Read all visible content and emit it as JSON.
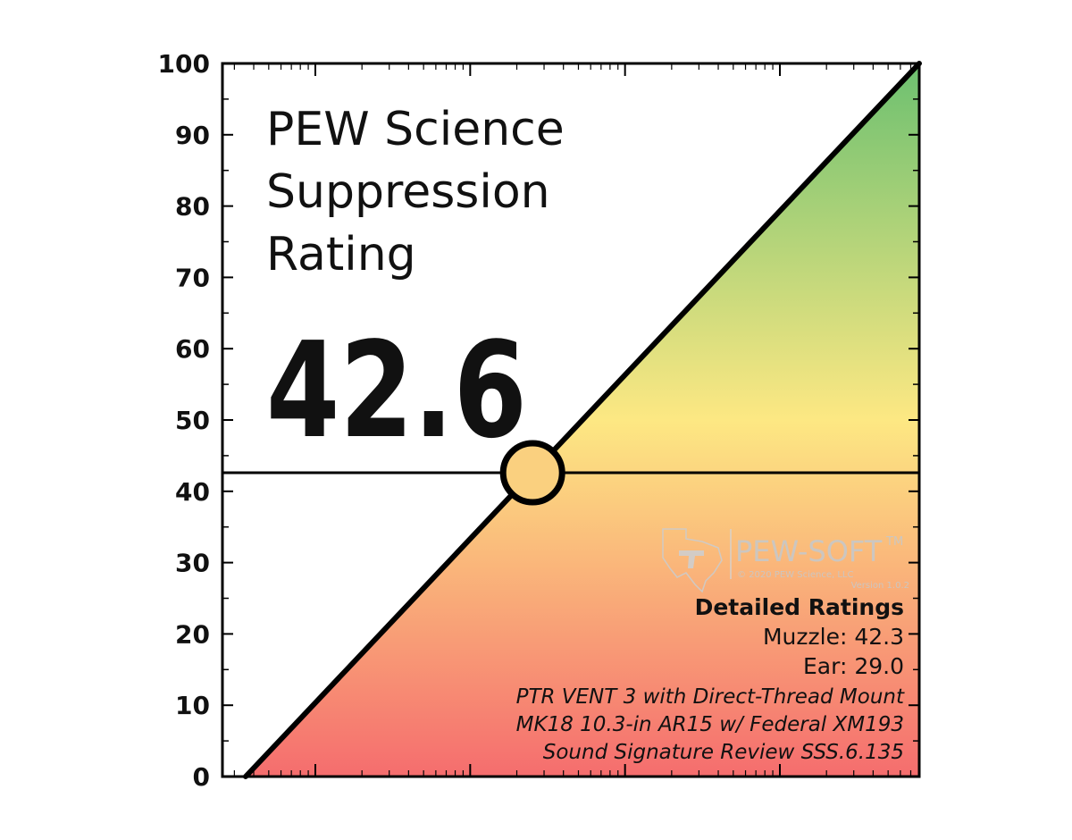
{
  "chart_data": {
    "type": "line",
    "title_lines": [
      "PEW Science",
      "Suppression",
      "Rating"
    ],
    "rating_value": 42.6,
    "rating_label": "42.6",
    "ylim": [
      0,
      100
    ],
    "y_ticks": [
      0,
      10,
      20,
      30,
      40,
      50,
      60,
      70,
      80,
      90,
      100
    ],
    "y_tick_labels": [
      "0",
      "10",
      "20",
      "30",
      "40",
      "50",
      "60",
      "70",
      "80",
      "90",
      "100"
    ],
    "x_scale": "log",
    "x_tick_labels": [],
    "diagonal_line": {
      "from": [
        0,
        0
      ],
      "to": [
        100,
        100
      ]
    },
    "grid": false,
    "legend": "none",
    "gradient_colors": {
      "top": "#6cc070",
      "middle": "#fde883",
      "bottom": "#f56d6e"
    },
    "marker_fill": "#fad07f",
    "line_color": "#000000"
  },
  "details": {
    "heading": "Detailed Ratings",
    "muzzle": "Muzzle: 42.3",
    "ear": "Ear: 29.0",
    "suppressor": "PTR VENT 3 with Direct-Thread Mount",
    "host": "MK18 10.3-in AR15 w/ Federal XM193",
    "review": "Sound Signature Review SSS.6.135"
  },
  "watermark": {
    "brand": "PEW-SOFT",
    "trademark": "TM",
    "copyright": "© 2020 PEW Science, LLC",
    "version": "Version 1.0.2"
  }
}
